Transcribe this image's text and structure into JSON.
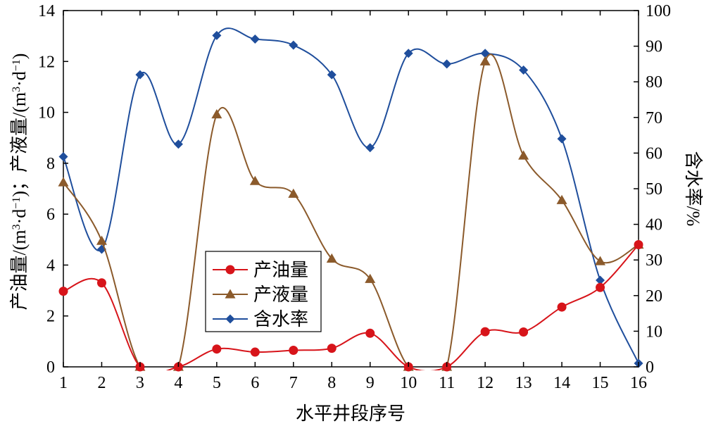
{
  "chart_data": {
    "type": "line",
    "categories": [
      "1",
      "2",
      "3",
      "4",
      "5",
      "6",
      "7",
      "8",
      "9",
      "10",
      "11",
      "12",
      "13",
      "14",
      "15",
      "16"
    ],
    "xlabel": "水平井段序号",
    "ylabel_left": "产油量/(m³·d⁻¹)；产液量/(m³·d⁻¹)",
    "ylabel_left_parts": {
      "a": "产油量/(m",
      "b": "3",
      "c": "·d",
      "d": "−1",
      "e": ")；产液量/(m",
      "f": "3",
      "g": "·d",
      "h": "−1",
      "i": ")"
    },
    "ylabel_right": "含水率/%",
    "ylim_left": [
      0,
      14
    ],
    "ylim_right": [
      0,
      100
    ],
    "yticks_left": [
      "0",
      "2",
      "4",
      "6",
      "8",
      "10",
      "12",
      "14"
    ],
    "yticks_right": [
      "0",
      "10",
      "20",
      "30",
      "40",
      "50",
      "60",
      "70",
      "80",
      "90",
      "100"
    ],
    "grid": false,
    "legend_position": "center",
    "series": [
      {
        "name": "产油量",
        "axis": "left",
        "color": "#d7141a",
        "marker": "circle",
        "values": [
          2.97,
          3.3,
          0,
          0,
          0.7,
          0.58,
          0.65,
          0.73,
          1.32,
          0,
          0,
          1.38,
          1.37,
          2.35,
          3.12,
          4.8
        ]
      },
      {
        "name": "产液量",
        "axis": "left",
        "color": "#8b5a2b",
        "marker": "triangle",
        "values": [
          7.25,
          4.95,
          0,
          0,
          9.92,
          7.3,
          6.8,
          4.25,
          3.45,
          0,
          0,
          12.0,
          8.3,
          6.55,
          4.15,
          4.8
        ]
      },
      {
        "name": "含水率",
        "axis": "right",
        "color": "#1f4e9c",
        "marker": "diamond",
        "values": [
          59,
          33,
          82,
          62.5,
          93,
          92,
          90.3,
          82,
          61.5,
          88,
          85,
          88,
          83.3,
          64,
          24.3,
          1
        ]
      }
    ]
  }
}
